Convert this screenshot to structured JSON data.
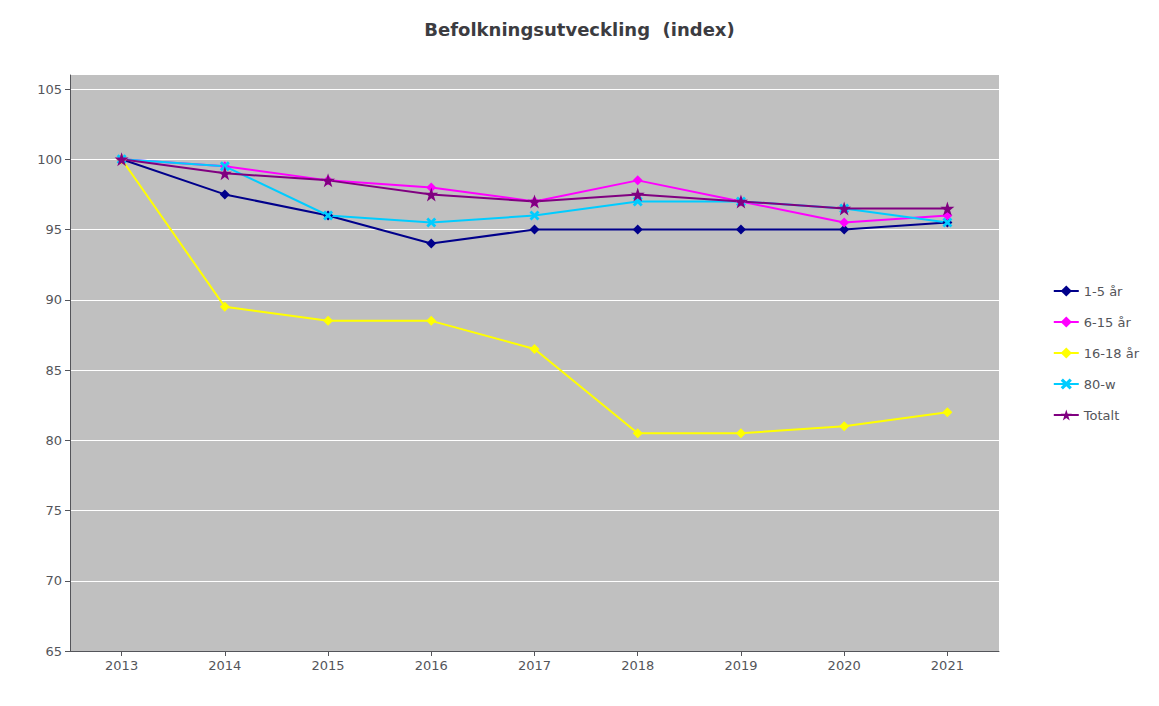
{
  "chart_data": {
    "type": "line",
    "title": "Befolkningsutveckling  (index)",
    "x": [
      2013,
      2014,
      2015,
      2016,
      2017,
      2018,
      2019,
      2020,
      2021
    ],
    "xlim": [
      2012.5,
      2021.5
    ],
    "xticks": [
      2013,
      2014,
      2015,
      2016,
      2017,
      2018,
      2019,
      2020,
      2021
    ],
    "ylim": [
      65,
      106
    ],
    "yticks": [
      65,
      70,
      75,
      80,
      85,
      90,
      95,
      100,
      105
    ],
    "grid": true,
    "legend": "right",
    "series": [
      {
        "name": "1-5 år",
        "color": "#00008B",
        "marker": "diamond",
        "values": [
          100,
          97.5,
          96,
          94,
          95,
          95,
          95,
          95,
          95.5
        ]
      },
      {
        "name": "6-15 år",
        "color": "#FF00FF",
        "marker": "diamond",
        "values": [
          100,
          99.5,
          98.5,
          98,
          97,
          98.5,
          97,
          95.5,
          96
        ]
      },
      {
        "name": "16-18 år",
        "color": "#FFFF00",
        "marker": "diamond",
        "values": [
          100,
          89.5,
          88.5,
          88.5,
          86.5,
          80.5,
          80.5,
          81,
          82
        ]
      },
      {
        "name": "80-w",
        "color": "#00CCFF",
        "marker": "x",
        "values": [
          100,
          99.5,
          96,
          95.5,
          96,
          97,
          97,
          96.5,
          95.5
        ]
      },
      {
        "name": "Totalt",
        "color": "#800080",
        "marker": "star",
        "values": [
          100,
          99,
          98.5,
          97.5,
          97,
          97.5,
          97,
          96.5,
          96.5
        ]
      }
    ]
  }
}
